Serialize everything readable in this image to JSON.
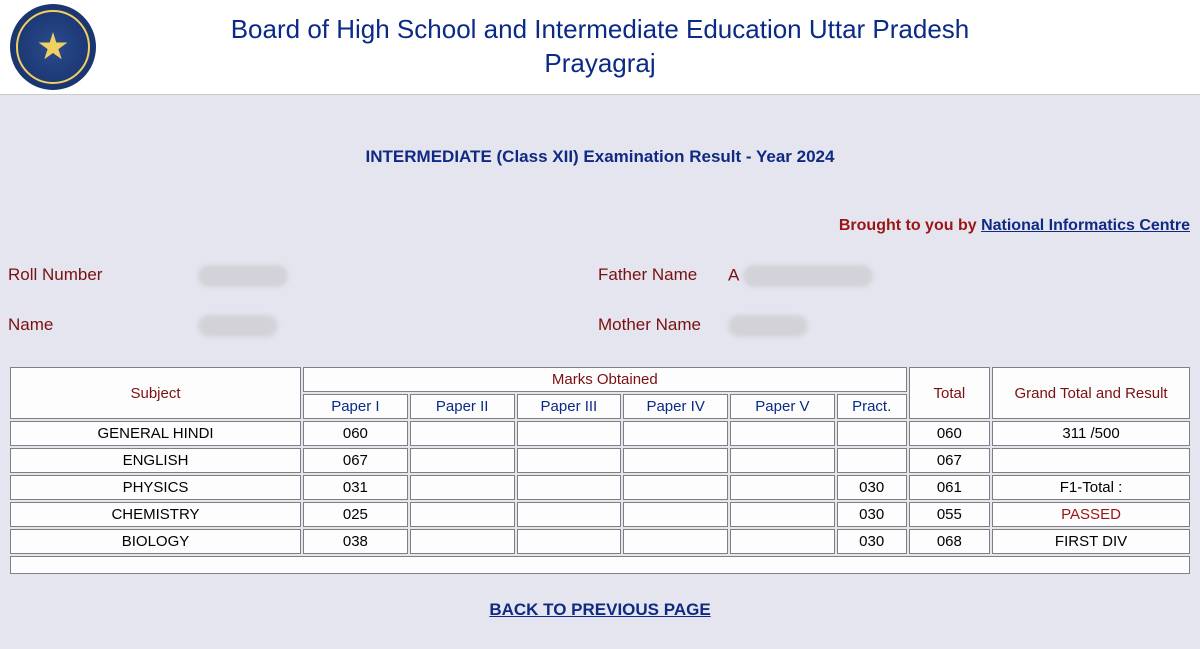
{
  "header": {
    "title_line1": "Board of High School and Intermediate Education Uttar Pradesh",
    "title_line2": "Prayagraj"
  },
  "exam_title": "INTERMEDIATE (Class XII) Examination Result -  Year 2024",
  "brought": {
    "label": "Brought to you by ",
    "link_text": "National Informatics Centre"
  },
  "info": {
    "roll_label": "Roll Number",
    "name_label": "Name",
    "father_label": "Father Name",
    "mother_label": "Mother Name",
    "father_initial": "A",
    "mother_initial": ""
  },
  "table": {
    "headers": {
      "subject": "Subject",
      "marks": "Marks Obtained",
      "total": "Total",
      "grand": "Grand Total and Result",
      "p1": "Paper I",
      "p2": "Paper II",
      "p3": "Paper III",
      "p4": "Paper IV",
      "p5": "Paper V",
      "pract": "Pract."
    },
    "rows": [
      {
        "subject": "GENERAL HINDI",
        "p1": "060",
        "p2": "",
        "p3": "",
        "p4": "",
        "p5": "",
        "pract": "",
        "total": "060",
        "grand": "311 /500",
        "grand_class": "bold"
      },
      {
        "subject": "ENGLISH",
        "p1": "067",
        "p2": "",
        "p3": "",
        "p4": "",
        "p5": "",
        "pract": "",
        "total": "067",
        "grand": "",
        "grand_class": ""
      },
      {
        "subject": "PHYSICS",
        "p1": "031",
        "p2": "",
        "p3": "",
        "p4": "",
        "p5": "",
        "pract": "030",
        "total": "061",
        "grand": "F1-Total :",
        "grand_class": "bold"
      },
      {
        "subject": "CHEMISTRY",
        "p1": "025",
        "p2": "",
        "p3": "",
        "p4": "",
        "p5": "",
        "pract": "030",
        "total": "055",
        "grand": "PASSED",
        "grand_class": "pass"
      },
      {
        "subject": "BIOLOGY",
        "p1": "038",
        "p2": "",
        "p3": "",
        "p4": "",
        "p5": "",
        "pract": "030",
        "total": "068",
        "grand": "FIRST DIV",
        "grand_class": "bold"
      }
    ]
  },
  "back_link": "BACK TO PREVIOUS PAGE",
  "colors": {
    "page_bg": "#e5e5f0",
    "header_bg": "#ffffff",
    "title_color": "#0a2a85",
    "label_color": "#7a1010",
    "pass_color": "#9a1515",
    "link_color": "#102a83",
    "cell_border": "#808080"
  },
  "col_widths_pct": {
    "subject": 25,
    "paper": 9,
    "pract": 6,
    "total": 7,
    "grand": 23
  }
}
